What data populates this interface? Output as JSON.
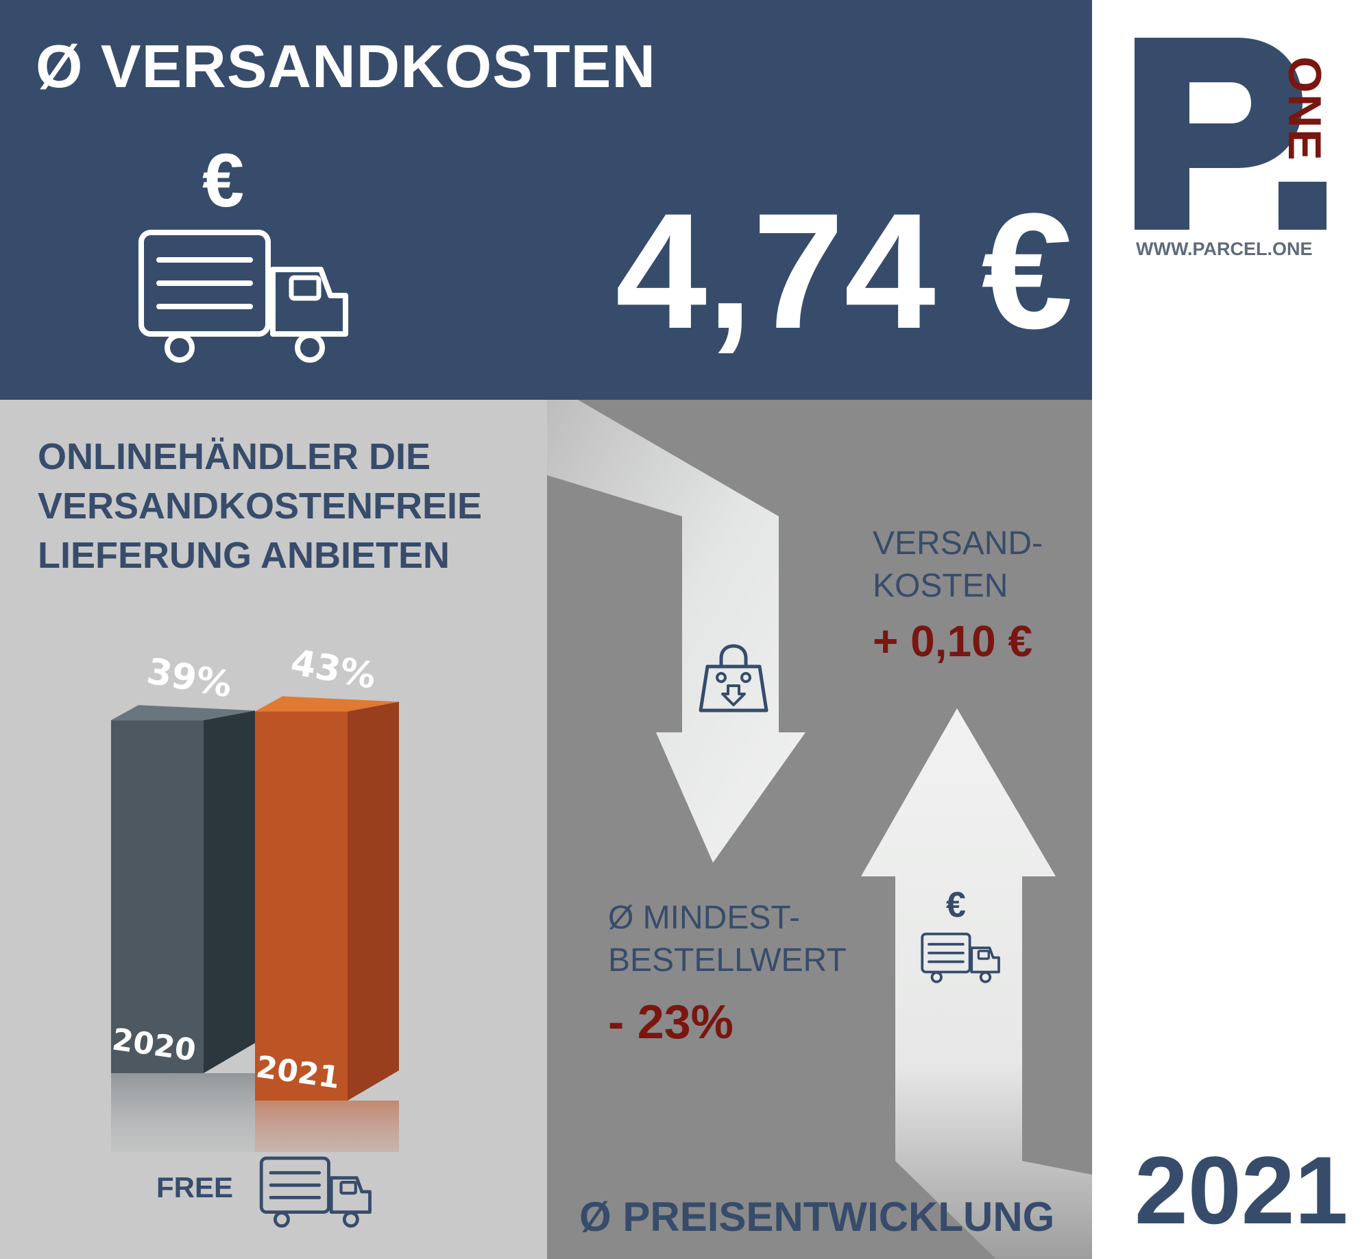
{
  "header": {
    "title": "Ø VERSANDKOSTEN",
    "average_cost": "4,74 €",
    "euro_symbol": "€"
  },
  "logo": {
    "letter": "P",
    "word": "ONE",
    "url": "WWW.PARCEL.ONE"
  },
  "left_section": {
    "subtitle_lines": [
      "ONLINEHÄNDLER DIE",
      "VERSANDKOSTENFREIE",
      "LIEFERUNG ANBIETEN"
    ],
    "free_label": "FREE"
  },
  "right_section": {
    "versandkosten_label_lines": [
      "VERSAND-",
      "KOSTEN"
    ],
    "versandkosten_change": "+ 0,10 €",
    "mindestbestellwert_label_lines": [
      "Ø MINDEST-",
      "BESTELLWERT"
    ],
    "mindestbestellwert_change": "- 23%",
    "trend_title": "Ø PREISENTWICKLUNG",
    "euro_symbol": "€"
  },
  "footer": {
    "year": "2021"
  },
  "colors": {
    "navy": "#374c6b",
    "bar_2020": "#4d5860",
    "bar_2021": "#bd5426",
    "accent_red": "#7a1610",
    "logo_red": "#7a1610"
  },
  "chart_data": {
    "type": "bar",
    "title": "ONLINEHÄNDLER DIE VERSANDKOSTENFREIE LIEFERUNG ANBIETEN",
    "categories": [
      "2020",
      "2021"
    ],
    "values": [
      39,
      43
    ],
    "labels": [
      "39%",
      "43%"
    ],
    "unit": "%"
  }
}
